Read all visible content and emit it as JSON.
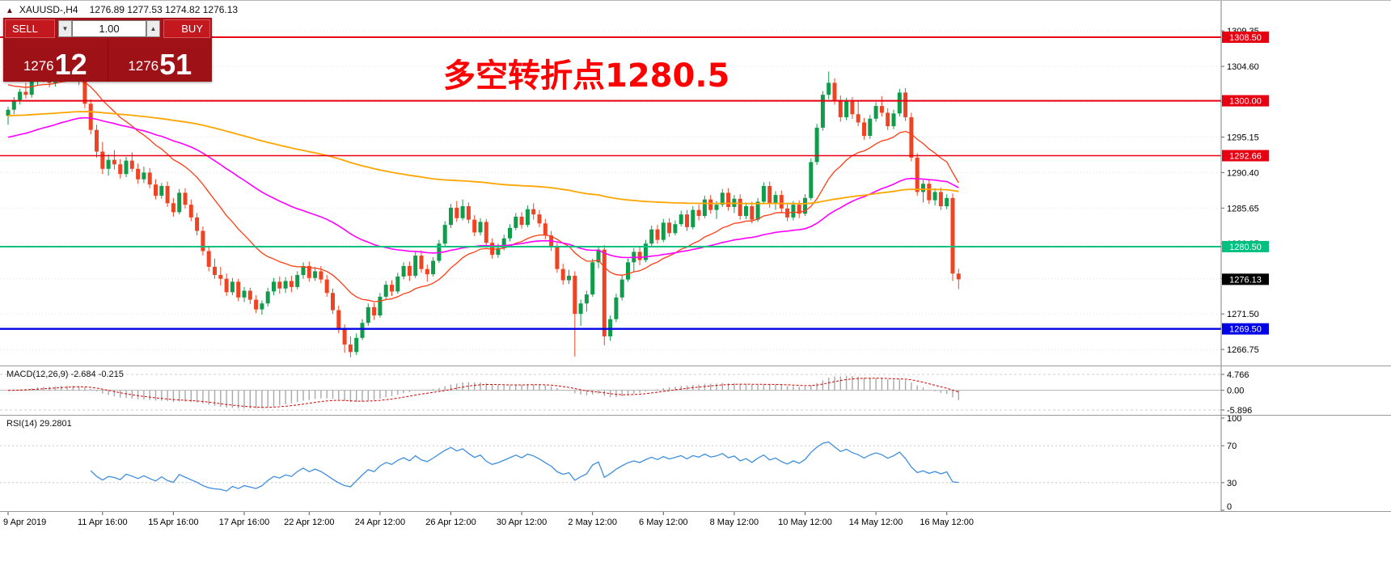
{
  "window": {
    "symbol_line": "XAUUSD-,H4",
    "ohlc_line": "1276.89 1277.53 1274.82 1276.13"
  },
  "icons": {
    "panel_toggle": "▲",
    "volume_down": "▼",
    "volume_up": "▲"
  },
  "trade_panel": {
    "sell_label": "SELL",
    "buy_label": "BUY",
    "volume": "1.00",
    "sell_price_main": "1276",
    "sell_price_pips": "12",
    "buy_price_main": "1276",
    "buy_price_pips": "51",
    "panel_color": "#9d1117",
    "button_color": "#c2181e"
  },
  "annotation": {
    "text": "多空转折点1280.5",
    "color": "#ff0000"
  },
  "chart_data": {
    "type": "candlestick",
    "symbol": "XAUUSD-",
    "timeframe": "H4",
    "current_candle": {
      "open": 1276.89,
      "high": 1277.53,
      "low": 1274.82,
      "close": 1276.13
    },
    "last_price": 1276.13,
    "up_color": "#119c4b",
    "down_color": "#ee4423",
    "price_axis": {
      "min": 1264.6,
      "max": 1312.5,
      "ticks": [
        1309.35,
        1304.6,
        1299.85,
        1295.15,
        1290.4,
        1285.65,
        1280.95,
        1276.2,
        1271.5,
        1266.75
      ]
    },
    "horizontal_lines": [
      {
        "price": 1308.5,
        "color": "#e60012",
        "width": 2
      },
      {
        "price": 1300.0,
        "color": "#e60012",
        "width": 2
      },
      {
        "price": 1292.66,
        "color": "#e60012",
        "width": 1.4
      },
      {
        "price": 1280.5,
        "color": "#00c080",
        "width": 2
      },
      {
        "price": 1269.5,
        "color": "#0000e6",
        "width": 2.4
      }
    ],
    "time_axis": [
      {
        "i": 0,
        "label": "9 Apr 2019"
      },
      {
        "i": 16,
        "label": "11 Apr 16:00"
      },
      {
        "i": 28,
        "label": "15 Apr 16:00"
      },
      {
        "i": 40,
        "label": "17 Apr 16:00"
      },
      {
        "i": 51,
        "label": "22 Apr 12:00"
      },
      {
        "i": 63,
        "label": "24 Apr 12:00"
      },
      {
        "i": 75,
        "label": "26 Apr 12:00"
      },
      {
        "i": 87,
        "label": "30 Apr 12:00"
      },
      {
        "i": 99,
        "label": "2 May 12:00"
      },
      {
        "i": 111,
        "label": "6 May 12:00"
      },
      {
        "i": 123,
        "label": "8 May 12:00"
      },
      {
        "i": 135,
        "label": "10 May 12:00"
      },
      {
        "i": 147,
        "label": "14 May 12:00"
      },
      {
        "i": 159,
        "label": "16 May 12:00"
      }
    ],
    "moving_averages": [
      {
        "period": 20,
        "seed": 1302.5,
        "color": "#ff3c14",
        "width": 1.3
      },
      {
        "period": 60,
        "seed": 1295.0,
        "color": "#ff00ff",
        "width": 1.6
      },
      {
        "period": 200,
        "seed": 1298.0,
        "color": "#ffa500",
        "width": 1.8
      }
    ],
    "macd": {
      "label": "MACD(12,26,9) -2.684 -0.215",
      "fast": 12,
      "slow": 26,
      "signal_period": 9,
      "axis_max": 4.766,
      "axis_min": -5.896,
      "axis_labels": [
        "4.766",
        "0.00",
        "-5.896"
      ],
      "histogram_color": "#a8a8a8",
      "signal_color": "#d40000"
    },
    "rsi": {
      "label": "RSI(14) 29.2801",
      "period": 14,
      "levels": [
        100,
        70,
        30,
        0
      ],
      "color": "#3f8ede",
      "last": 29.2801
    },
    "candles": [
      [
        1298.0,
        1299.2,
        1296.8,
        1298.8
      ],
      [
        1298.8,
        1300.5,
        1298.2,
        1300.1
      ],
      [
        1300.1,
        1301.6,
        1299.5,
        1301.2
      ],
      [
        1301.2,
        1302.4,
        1300.3,
        1300.8
      ],
      [
        1300.8,
        1303.2,
        1300.4,
        1302.9
      ],
      [
        1302.9,
        1304.5,
        1302.0,
        1303.8
      ],
      [
        1303.8,
        1304.6,
        1302.5,
        1303.1
      ],
      [
        1303.1,
        1303.9,
        1301.8,
        1302.4
      ],
      [
        1302.4,
        1304.2,
        1301.9,
        1303.6
      ],
      [
        1303.6,
        1305.2,
        1302.8,
        1304.4
      ],
      [
        1304.4,
        1305.0,
        1303.0,
        1303.5
      ],
      [
        1303.5,
        1304.8,
        1302.7,
        1304.2
      ],
      [
        1304.2,
        1304.9,
        1302.1,
        1302.6
      ],
      [
        1302.6,
        1303.0,
        1299.0,
        1299.6
      ],
      [
        1299.6,
        1300.2,
        1295.5,
        1296.1
      ],
      [
        1296.1,
        1296.8,
        1292.4,
        1293.2
      ],
      [
        1293.2,
        1294.5,
        1290.2,
        1290.9
      ],
      [
        1290.9,
        1292.8,
        1290.0,
        1292.1
      ],
      [
        1292.1,
        1293.4,
        1290.8,
        1291.5
      ],
      [
        1291.5,
        1292.2,
        1289.6,
        1290.2
      ],
      [
        1290.2,
        1292.5,
        1289.8,
        1292.0
      ],
      [
        1292.0,
        1293.1,
        1290.5,
        1290.9
      ],
      [
        1290.9,
        1291.6,
        1288.9,
        1289.5
      ],
      [
        1289.5,
        1291.2,
        1289.0,
        1290.4
      ],
      [
        1290.4,
        1291.0,
        1288.3,
        1288.8
      ],
      [
        1288.8,
        1289.5,
        1286.8,
        1287.3
      ],
      [
        1287.3,
        1289.0,
        1286.9,
        1288.6
      ],
      [
        1288.6,
        1289.2,
        1285.8,
        1286.3
      ],
      [
        1286.3,
        1287.0,
        1284.5,
        1285.1
      ],
      [
        1285.1,
        1288.2,
        1284.8,
        1287.7
      ],
      [
        1287.7,
        1288.3,
        1285.6,
        1286.1
      ],
      [
        1286.1,
        1286.8,
        1283.9,
        1284.4
      ],
      [
        1284.4,
        1285.0,
        1282.0,
        1282.6
      ],
      [
        1282.6,
        1283.2,
        1279.3,
        1279.9
      ],
      [
        1279.9,
        1280.5,
        1277.2,
        1277.8
      ],
      [
        1277.8,
        1278.9,
        1276.2,
        1276.7
      ],
      [
        1276.7,
        1277.8,
        1275.3,
        1276.2
      ],
      [
        1276.2,
        1276.9,
        1273.9,
        1274.4
      ],
      [
        1274.4,
        1276.3,
        1274.0,
        1275.8
      ],
      [
        1275.8,
        1276.2,
        1273.2,
        1273.7
      ],
      [
        1273.7,
        1275.1,
        1273.1,
        1274.6
      ],
      [
        1274.6,
        1275.0,
        1272.8,
        1273.4
      ],
      [
        1273.4,
        1274.0,
        1271.6,
        1272.1
      ],
      [
        1272.1,
        1273.3,
        1271.4,
        1272.9
      ],
      [
        1272.9,
        1275.0,
        1272.5,
        1274.5
      ],
      [
        1274.5,
        1276.3,
        1274.0,
        1275.8
      ],
      [
        1275.8,
        1276.5,
        1274.2,
        1274.9
      ],
      [
        1274.9,
        1276.4,
        1274.3,
        1275.9
      ],
      [
        1275.9,
        1276.6,
        1274.4,
        1275.1
      ],
      [
        1275.1,
        1277.2,
        1274.8,
        1276.7
      ],
      [
        1276.7,
        1278.4,
        1276.2,
        1277.9
      ],
      [
        1277.9,
        1278.5,
        1275.8,
        1276.3
      ],
      [
        1276.3,
        1277.8,
        1275.9,
        1277.2
      ],
      [
        1277.2,
        1277.9,
        1275.6,
        1276.1
      ],
      [
        1276.1,
        1276.7,
        1273.8,
        1274.3
      ],
      [
        1274.3,
        1274.9,
        1271.5,
        1272.0
      ],
      [
        1272.0,
        1272.6,
        1268.9,
        1269.5
      ],
      [
        1269.5,
        1270.1,
        1266.3,
        1267.4
      ],
      [
        1267.4,
        1268.5,
        1265.7,
        1266.4
      ],
      [
        1266.4,
        1268.9,
        1266.0,
        1268.3
      ],
      [
        1268.3,
        1270.8,
        1268.0,
        1270.3
      ],
      [
        1270.3,
        1272.9,
        1269.9,
        1272.4
      ],
      [
        1272.4,
        1273.0,
        1270.7,
        1271.3
      ],
      [
        1271.3,
        1274.3,
        1271.0,
        1273.8
      ],
      [
        1273.8,
        1275.9,
        1273.4,
        1275.4
      ],
      [
        1275.4,
        1276.0,
        1273.9,
        1274.5
      ],
      [
        1274.5,
        1277.0,
        1274.2,
        1276.5
      ],
      [
        1276.5,
        1278.4,
        1276.1,
        1277.9
      ],
      [
        1277.9,
        1278.5,
        1275.9,
        1276.6
      ],
      [
        1276.6,
        1279.8,
        1276.3,
        1279.3
      ],
      [
        1279.3,
        1280.0,
        1277.0,
        1277.5
      ],
      [
        1277.5,
        1278.1,
        1275.8,
        1276.8
      ],
      [
        1276.8,
        1279.1,
        1276.5,
        1278.6
      ],
      [
        1278.6,
        1281.4,
        1278.3,
        1280.9
      ],
      [
        1280.9,
        1283.9,
        1280.6,
        1283.4
      ],
      [
        1283.4,
        1286.2,
        1283.0,
        1285.7
      ],
      [
        1285.7,
        1286.6,
        1283.8,
        1284.3
      ],
      [
        1284.3,
        1286.8,
        1284.0,
        1285.9
      ],
      [
        1285.9,
        1286.4,
        1283.6,
        1284.1
      ],
      [
        1284.1,
        1284.7,
        1281.9,
        1282.4
      ],
      [
        1282.4,
        1284.3,
        1282.0,
        1283.8
      ],
      [
        1283.8,
        1284.2,
        1280.5,
        1281.0
      ],
      [
        1281.0,
        1281.6,
        1278.9,
        1279.4
      ],
      [
        1279.4,
        1280.9,
        1279.0,
        1280.3
      ],
      [
        1280.3,
        1282.1,
        1280.0,
        1281.6
      ],
      [
        1281.6,
        1283.5,
        1281.2,
        1283.0
      ],
      [
        1283.0,
        1285.0,
        1282.7,
        1284.5
      ],
      [
        1284.5,
        1285.1,
        1282.9,
        1283.4
      ],
      [
        1283.4,
        1286.0,
        1283.1,
        1285.5
      ],
      [
        1285.5,
        1286.3,
        1284.1,
        1284.8
      ],
      [
        1284.8,
        1285.4,
        1283.1,
        1283.6
      ],
      [
        1283.6,
        1284.2,
        1281.5,
        1282.0
      ],
      [
        1282.0,
        1282.6,
        1279.9,
        1280.4
      ],
      [
        1280.4,
        1281.0,
        1277.0,
        1277.5
      ],
      [
        1277.5,
        1278.2,
        1275.4,
        1276.0
      ],
      [
        1276.0,
        1277.4,
        1275.5,
        1276.6
      ],
      [
        1276.6,
        1277.2,
        1265.8,
        1271.5
      ],
      [
        1271.5,
        1273.4,
        1269.9,
        1272.9
      ],
      [
        1272.9,
        1274.6,
        1271.8,
        1274.1
      ],
      [
        1274.1,
        1278.9,
        1273.8,
        1278.4
      ],
      [
        1278.4,
        1280.6,
        1277.6,
        1280.1
      ],
      [
        1280.1,
        1280.7,
        1267.3,
        1268.5
      ],
      [
        1268.5,
        1271.3,
        1267.9,
        1270.8
      ],
      [
        1270.8,
        1274.2,
        1270.4,
        1273.7
      ],
      [
        1273.7,
        1276.6,
        1273.3,
        1276.1
      ],
      [
        1276.1,
        1278.9,
        1275.8,
        1278.4
      ],
      [
        1278.4,
        1280.3,
        1277.1,
        1279.8
      ],
      [
        1279.8,
        1280.4,
        1278.0,
        1278.7
      ],
      [
        1278.7,
        1281.4,
        1278.4,
        1280.9
      ],
      [
        1280.9,
        1283.3,
        1280.5,
        1282.8
      ],
      [
        1282.8,
        1283.4,
        1280.9,
        1281.4
      ],
      [
        1281.4,
        1284.2,
        1281.1,
        1283.7
      ],
      [
        1283.7,
        1284.3,
        1281.8,
        1282.3
      ],
      [
        1282.3,
        1284.0,
        1282.0,
        1283.5
      ],
      [
        1283.5,
        1285.3,
        1283.2,
        1284.8
      ],
      [
        1284.8,
        1285.4,
        1282.6,
        1283.1
      ],
      [
        1283.1,
        1285.9,
        1282.8,
        1285.4
      ],
      [
        1285.4,
        1286.1,
        1284.0,
        1284.6
      ],
      [
        1284.6,
        1287.3,
        1284.3,
        1286.8
      ],
      [
        1286.8,
        1287.4,
        1284.9,
        1285.4
      ],
      [
        1285.4,
        1286.6,
        1284.2,
        1286.1
      ],
      [
        1286.1,
        1288.2,
        1285.8,
        1287.7
      ],
      [
        1287.7,
        1288.3,
        1285.3,
        1285.8
      ],
      [
        1285.8,
        1287.4,
        1285.0,
        1286.9
      ],
      [
        1286.9,
        1287.5,
        1284.1,
        1284.6
      ],
      [
        1284.6,
        1286.4,
        1284.2,
        1285.9
      ],
      [
        1285.9,
        1286.5,
        1283.6,
        1284.1
      ],
      [
        1284.1,
        1287.0,
        1283.8,
        1286.5
      ],
      [
        1286.5,
        1289.1,
        1286.2,
        1288.6
      ],
      [
        1288.6,
        1289.2,
        1285.7,
        1286.2
      ],
      [
        1286.2,
        1287.9,
        1285.4,
        1287.4
      ],
      [
        1287.4,
        1288.0,
        1285.1,
        1285.6
      ],
      [
        1285.6,
        1286.2,
        1283.9,
        1284.4
      ],
      [
        1284.4,
        1286.6,
        1284.0,
        1286.1
      ],
      [
        1286.1,
        1286.7,
        1284.3,
        1284.9
      ],
      [
        1284.9,
        1287.5,
        1284.6,
        1287.0
      ],
      [
        1287.0,
        1292.3,
        1286.7,
        1291.8
      ],
      [
        1291.8,
        1296.9,
        1291.4,
        1296.4
      ],
      [
        1296.4,
        1301.3,
        1296.0,
        1300.8
      ],
      [
        1300.8,
        1303.9,
        1300.2,
        1302.4
      ],
      [
        1302.4,
        1303.0,
        1299.5,
        1300.1
      ],
      [
        1300.1,
        1300.7,
        1297.2,
        1297.8
      ],
      [
        1297.8,
        1300.4,
        1297.4,
        1299.9
      ],
      [
        1299.9,
        1300.5,
        1297.6,
        1298.2
      ],
      [
        1298.2,
        1299.9,
        1296.6,
        1297.1
      ],
      [
        1297.1,
        1297.7,
        1294.8,
        1295.3
      ],
      [
        1295.3,
        1298.1,
        1294.9,
        1297.6
      ],
      [
        1297.6,
        1299.8,
        1297.2,
        1299.3
      ],
      [
        1299.3,
        1300.6,
        1297.9,
        1298.4
      ],
      [
        1298.4,
        1299.0,
        1296.1,
        1296.6
      ],
      [
        1296.6,
        1298.8,
        1296.2,
        1298.3
      ],
      [
        1298.3,
        1301.6,
        1297.9,
        1301.1
      ],
      [
        1301.1,
        1301.7,
        1297.3,
        1297.8
      ],
      [
        1297.8,
        1298.4,
        1291.9,
        1292.4
      ],
      [
        1292.4,
        1293.0,
        1287.3,
        1287.8
      ],
      [
        1287.8,
        1289.4,
        1286.4,
        1288.9
      ],
      [
        1288.9,
        1289.5,
        1286.2,
        1286.7
      ],
      [
        1286.7,
        1288.3,
        1286.0,
        1287.8
      ],
      [
        1287.8,
        1288.4,
        1285.4,
        1285.9
      ],
      [
        1285.9,
        1287.5,
        1285.5,
        1287.0
      ],
      [
        1287.0,
        1287.6,
        1275.9,
        1276.9
      ],
      [
        1276.89,
        1277.53,
        1274.82,
        1276.13
      ]
    ]
  }
}
